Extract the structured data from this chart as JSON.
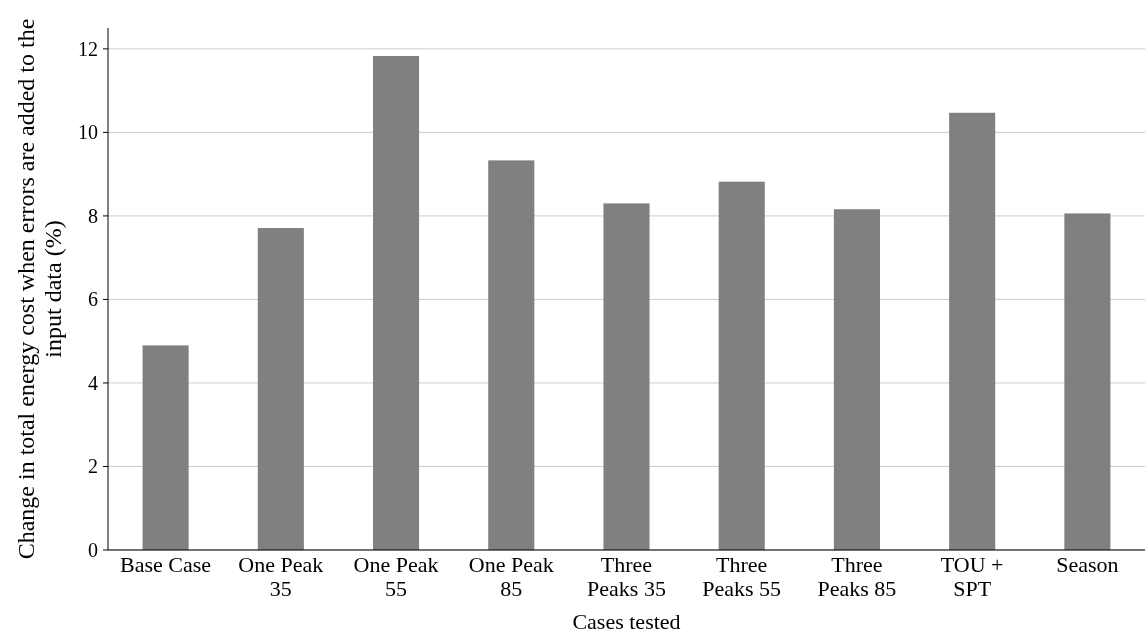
{
  "chart_data": {
    "type": "bar",
    "xlabel": "Cases tested",
    "ylabel": "Change in total energy cost when errors are added to the input data (%)",
    "categories": [
      "Base Case",
      "One Peak 35",
      "One Peak 55",
      "One Peak 85",
      "Three Peaks 35",
      "Three Peaks 55",
      "Three Peaks 85",
      "TOU + SPT",
      "Season"
    ],
    "values": [
      4.9,
      7.71,
      11.83,
      9.33,
      8.3,
      8.82,
      8.16,
      10.47,
      8.06
    ],
    "color": "#808080",
    "ylim": [
      0,
      12.5
    ],
    "yticks": [
      0,
      2,
      4,
      6,
      8,
      10,
      12
    ],
    "grid": "y"
  }
}
